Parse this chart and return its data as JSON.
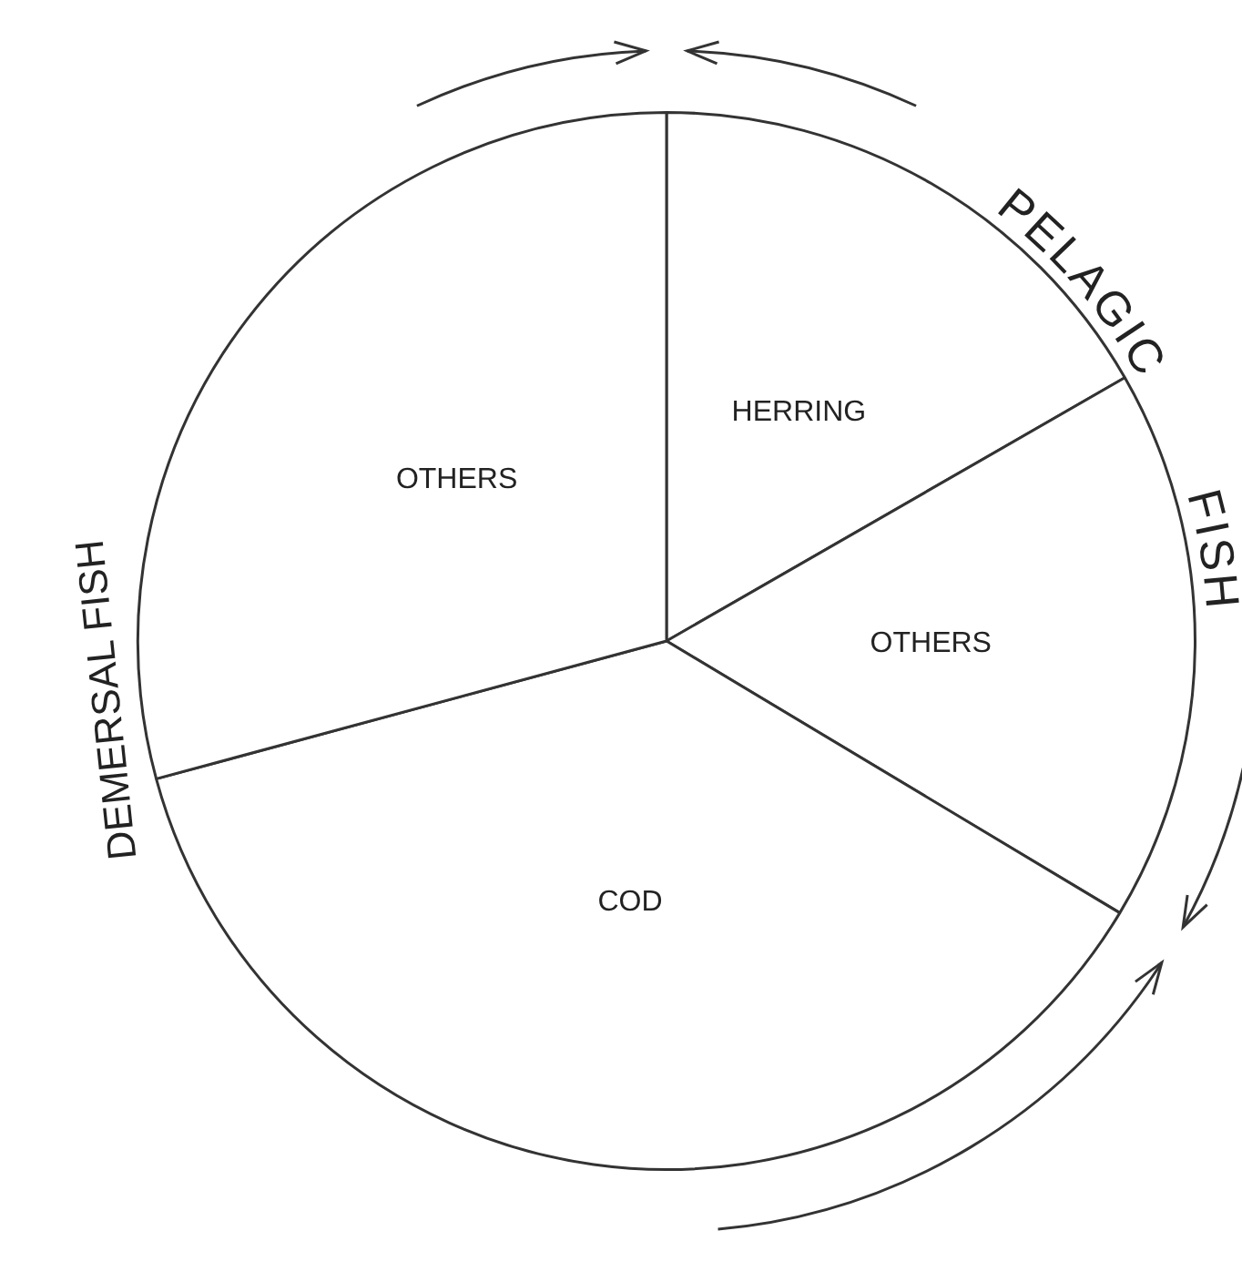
{
  "chart_data": {
    "type": "pie",
    "categories": [
      "HERRING",
      "OTHERS",
      "COD",
      "OTHERS"
    ],
    "values": [
      16.7,
      16.9,
      37.2,
      29.2
    ],
    "colors": [
      "#ffffff",
      "#ffffff",
      "#ffffff",
      "#ffffff"
    ],
    "annotations": [
      "PELAGIC FISH",
      "DEMERSAL FISH"
    ],
    "legend": false
  }
}
